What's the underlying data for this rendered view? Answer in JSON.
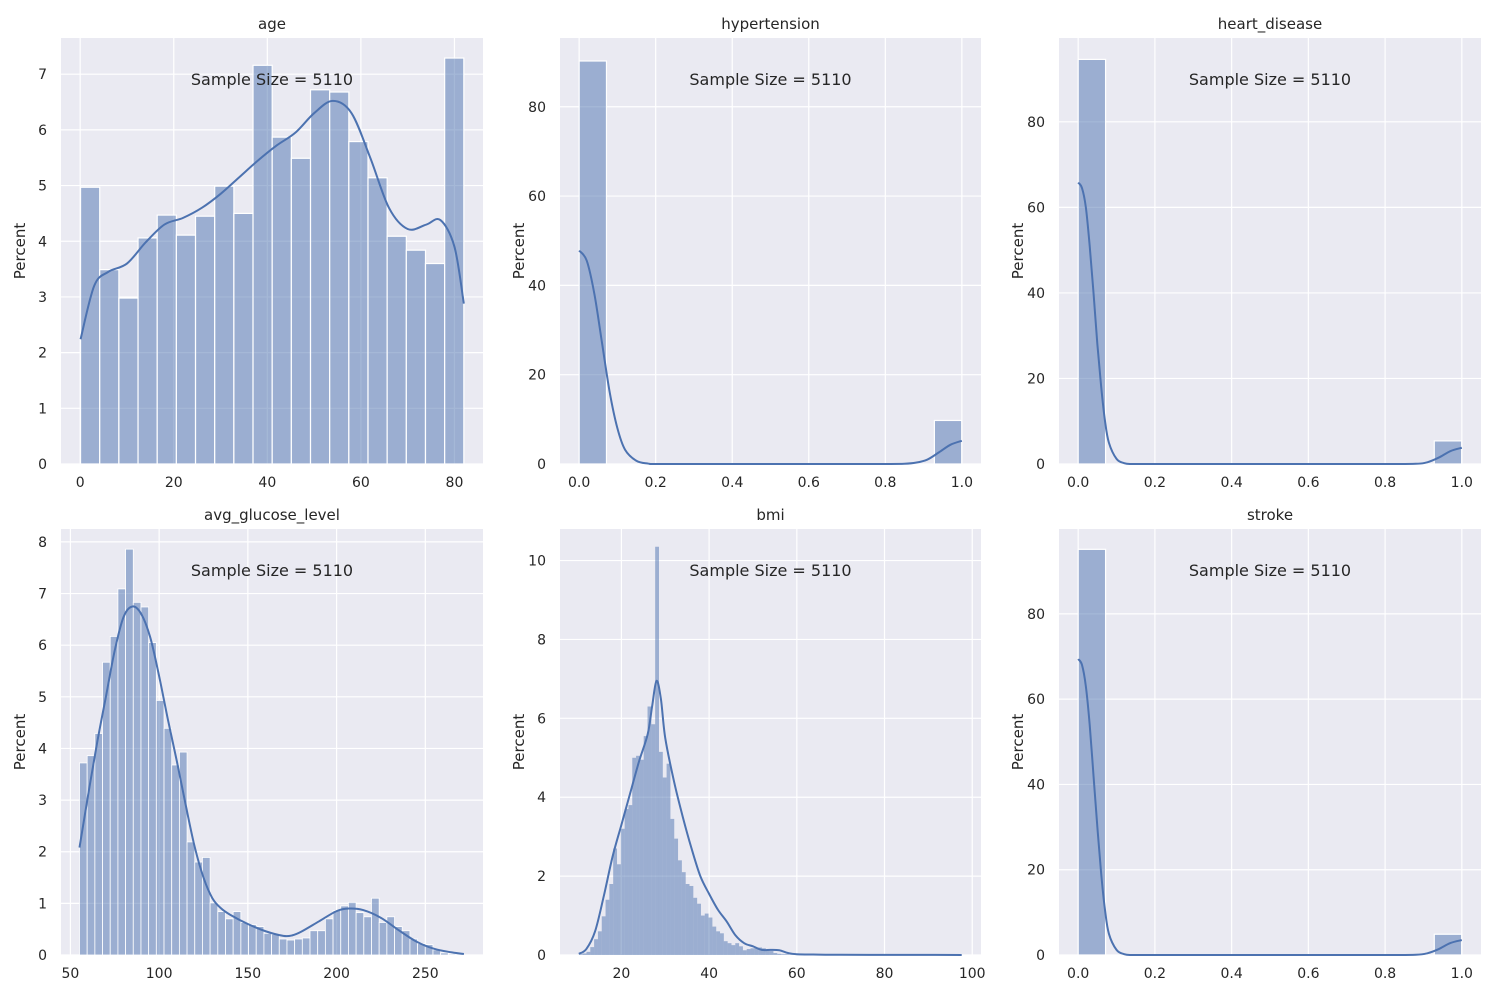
{
  "figure": {
    "annotation_prefix": "Sample Size = ",
    "sample_size": 5110,
    "colors": {
      "bar": "#4c72b0",
      "bar_alpha": 0.5,
      "kde": "#4c72b0",
      "axes_bg": "#eaeaf2",
      "grid": "#ffffff",
      "text": "#262626"
    }
  },
  "chart_data": [
    {
      "type": "bar",
      "title": "age",
      "xlabel": "",
      "ylabel": "Percent",
      "annotation": "Sample Size = 5110",
      "xlim": [
        -4.1,
        86.1
      ],
      "ylim": [
        0,
        7.65
      ],
      "xticks": [
        0,
        20,
        40,
        60,
        80
      ],
      "xtick_labels": [
        "0",
        "20",
        "40",
        "60",
        "80"
      ],
      "yticks": [
        0,
        1,
        2,
        3,
        4,
        5,
        6,
        7
      ],
      "ytick_labels": [
        "0",
        "1",
        "2",
        "3",
        "4",
        "5",
        "6",
        "7"
      ],
      "bin_start": 0.08,
      "bin_width": 4.096,
      "values": [
        4.97,
        3.49,
        2.98,
        4.06,
        4.47,
        4.11,
        4.45,
        4.99,
        4.5,
        7.16,
        5.87,
        5.49,
        6.72,
        6.68,
        5.79,
        5.14,
        4.09,
        3.84,
        3.6,
        7.29
      ],
      "kde": {
        "x": [
          0.08,
          3,
          6,
          10,
          14,
          18,
          22,
          26,
          30,
          34,
          38,
          42,
          46,
          50,
          54,
          58,
          62,
          66,
          70,
          74,
          77,
          80,
          82
        ],
        "y": [
          2.24,
          3.2,
          3.45,
          3.6,
          3.98,
          4.3,
          4.42,
          4.6,
          4.85,
          5.15,
          5.45,
          5.72,
          5.95,
          6.3,
          6.52,
          6.3,
          5.5,
          4.6,
          4.22,
          4.3,
          4.38,
          3.9,
          2.88
        ]
      }
    },
    {
      "type": "bar",
      "title": "hypertension",
      "xlabel": "",
      "ylabel": "Percent",
      "annotation": "Sample Size = 5110",
      "xlim": [
        -0.05,
        1.05
      ],
      "ylim": [
        0,
        95.4
      ],
      "xticks": [
        0.0,
        0.2,
        0.4,
        0.6,
        0.8,
        1.0
      ],
      "xtick_labels": [
        "0.0",
        "0.2",
        "0.4",
        "0.6",
        "0.8",
        "1.0"
      ],
      "yticks": [
        0,
        20,
        40,
        60,
        80
      ],
      "ytick_labels": [
        "0",
        "20",
        "40",
        "60",
        "80"
      ],
      "bin_start": 0.0,
      "bin_width": 0.0714,
      "values": [
        90.25,
        0,
        0,
        0,
        0,
        0,
        0,
        0,
        0,
        0,
        0,
        0,
        0,
        9.75
      ],
      "kde": {
        "x": [
          0,
          0.02,
          0.04,
          0.06,
          0.08,
          0.1,
          0.12,
          0.15,
          0.18,
          0.2,
          0.3,
          0.5,
          0.7,
          0.8,
          0.85,
          0.88,
          0.91,
          0.94,
          0.97,
          1.0
        ],
        "y": [
          47.8,
          45.5,
          38,
          27,
          16,
          8,
          3.2,
          0.7,
          0.1,
          0,
          0,
          0,
          0,
          0,
          0.05,
          0.3,
          1.0,
          2.6,
          4.3,
          5.2
        ]
      }
    },
    {
      "type": "bar",
      "title": "heart_disease",
      "xlabel": "",
      "ylabel": "Percent",
      "annotation": "Sample Size = 5110",
      "xlim": [
        -0.05,
        1.05
      ],
      "ylim": [
        0,
        99.6
      ],
      "xticks": [
        0.0,
        0.2,
        0.4,
        0.6,
        0.8,
        1.0
      ],
      "xtick_labels": [
        "0.0",
        "0.2",
        "0.4",
        "0.6",
        "0.8",
        "1.0"
      ],
      "yticks": [
        0,
        20,
        40,
        60,
        80
      ],
      "ytick_labels": [
        "0",
        "20",
        "40",
        "60",
        "80"
      ],
      "bin_start": 0.0,
      "bin_width": 0.0714,
      "values": [
        94.6,
        0,
        0,
        0,
        0,
        0,
        0,
        0,
        0,
        0,
        0,
        0,
        0,
        5.4
      ],
      "kde": {
        "x": [
          0,
          0.01,
          0.02,
          0.03,
          0.04,
          0.05,
          0.06,
          0.07,
          0.08,
          0.1,
          0.12,
          0.14,
          0.2,
          0.5,
          0.8,
          0.88,
          0.91,
          0.94,
          0.97,
          1.0
        ],
        "y": [
          65.8,
          64.5,
          60,
          51,
          40,
          28,
          18,
          10,
          5,
          1.2,
          0.2,
          0,
          0,
          0,
          0,
          0.05,
          0.4,
          1.5,
          3.0,
          3.8
        ]
      }
    },
    {
      "type": "bar",
      "title": "avg_glucose_level",
      "xlabel": "",
      "ylabel": "Percent",
      "annotation": "Sample Size = 5110",
      "xlim": [
        44.7,
        282.5
      ],
      "ylim": [
        0,
        8.25
      ],
      "xticks": [
        50,
        100,
        150,
        200,
        250
      ],
      "xtick_labels": [
        "50",
        "100",
        "150",
        "200",
        "250"
      ],
      "yticks": [
        0,
        1,
        2,
        3,
        4,
        5,
        6,
        7,
        8
      ],
      "ytick_labels": [
        "0",
        "1",
        "2",
        "3",
        "4",
        "5",
        "6",
        "7",
        "8"
      ],
      "bin_start": 55.12,
      "bin_width": 4.33,
      "values": [
        3.72,
        3.86,
        4.29,
        5.67,
        6.17,
        7.09,
        7.86,
        6.83,
        6.74,
        6.05,
        4.93,
        4.39,
        3.68,
        3.93,
        2.19,
        1.8,
        1.89,
        1.01,
        0.84,
        0.7,
        0.84,
        0.63,
        0.59,
        0.55,
        0.42,
        0.4,
        0.31,
        0.29,
        0.31,
        0.33,
        0.47,
        0.47,
        0.7,
        0.86,
        0.95,
        1.02,
        0.82,
        0.74,
        1.1,
        0.63,
        0.74,
        0.55,
        0.47,
        0.31,
        0.22,
        0.2,
        0.1,
        0.04,
        0.02,
        0.02
      ],
      "kde": {
        "x": [
          55.12,
          60,
          65,
          70,
          75,
          80,
          85,
          90,
          95,
          100,
          105,
          110,
          115,
          120,
          125,
          130,
          135,
          140,
          150,
          160,
          170,
          175,
          180,
          190,
          200,
          207,
          215,
          225,
          235,
          245,
          255,
          265,
          271.74
        ],
        "y": [
          2.08,
          3.1,
          4.1,
          5.0,
          5.9,
          6.55,
          6.75,
          6.6,
          6.15,
          5.4,
          4.55,
          3.75,
          2.9,
          2.1,
          1.5,
          1.1,
          0.9,
          0.78,
          0.6,
          0.46,
          0.37,
          0.38,
          0.45,
          0.65,
          0.85,
          0.9,
          0.87,
          0.72,
          0.48,
          0.26,
          0.12,
          0.05,
          0.02
        ]
      }
    },
    {
      "type": "bar",
      "title": "bmi",
      "xlabel": "",
      "ylabel": "Percent",
      "annotation": "Sample Size = 5110",
      "xlim": [
        6.0,
        102.0
      ],
      "ylim": [
        0,
        10.8
      ],
      "xticks": [
        20,
        40,
        60,
        80,
        100
      ],
      "xtick_labels": [
        "20",
        "40",
        "60",
        "80",
        "100"
      ],
      "yticks": [
        0,
        2,
        4,
        6,
        8,
        10
      ],
      "ytick_labels": [
        "0",
        "2",
        "4",
        "6",
        "8",
        "10"
      ],
      "bin_start": 10.3,
      "bin_width": 0.87,
      "values": [
        0.02,
        0.04,
        0.08,
        0.2,
        0.4,
        0.6,
        0.98,
        1.4,
        1.8,
        2.7,
        2.3,
        3.2,
        3.7,
        3.8,
        5.0,
        5.05,
        4.95,
        5.55,
        6.3,
        5.85,
        10.35,
        5.15,
        4.5,
        4.85,
        3.45,
        2.95,
        2.4,
        2.1,
        1.8,
        1.75,
        1.45,
        1.3,
        1.0,
        1.05,
        0.95,
        0.72,
        0.6,
        0.55,
        0.35,
        0.3,
        0.25,
        0.3,
        0.22,
        0.12,
        0.15,
        0.17,
        0.18,
        0.19,
        0.17,
        0.12,
        0.1,
        0.05,
        0.03,
        0.02,
        0.02,
        0.01,
        0.01,
        0.01,
        0.01,
        0.01,
        0.01,
        0.01,
        0.01,
        0.01,
        0.01,
        0.01,
        0.01,
        0.01,
        0.01,
        0.01,
        0.01,
        0.01,
        0.01,
        0.01,
        0.01,
        0.01,
        0.01,
        0.01,
        0.01,
        0.01,
        0.01,
        0.01,
        0.01,
        0.01,
        0.01,
        0.01,
        0.01,
        0.01,
        0.01,
        0.01,
        0.01,
        0.01,
        0.01,
        0.01,
        0.01,
        0.01,
        0.01,
        0.01,
        0.01,
        0.01
      ],
      "kde": {
        "x": [
          10.3,
          12,
          14,
          16,
          18,
          20,
          22,
          24,
          26,
          27,
          28,
          29,
          30,
          32,
          34,
          36,
          38,
          40,
          42,
          44,
          46,
          48,
          50,
          52,
          54,
          56,
          58,
          60,
          65,
          70,
          80,
          90,
          97.6
        ],
        "y": [
          0.03,
          0.15,
          0.6,
          1.5,
          2.5,
          3.3,
          4.1,
          4.9,
          5.6,
          6.3,
          6.95,
          6.5,
          5.5,
          4.4,
          3.5,
          2.7,
          2.0,
          1.55,
          1.15,
          0.85,
          0.5,
          0.3,
          0.22,
          0.13,
          0.13,
          0.12,
          0.05,
          0.02,
          0.01,
          0.005,
          0.003,
          0.002,
          0.001
        ]
      }
    },
    {
      "type": "bar",
      "title": "stroke",
      "xlabel": "",
      "ylabel": "Percent",
      "annotation": "Sample Size = 5110",
      "xlim": [
        -0.05,
        1.05
      ],
      "ylim": [
        0,
        99.9
      ],
      "xticks": [
        0.0,
        0.2,
        0.4,
        0.6,
        0.8,
        1.0
      ],
      "xtick_labels": [
        "0.0",
        "0.2",
        "0.4",
        "0.6",
        "0.8",
        "1.0"
      ],
      "yticks": [
        0,
        20,
        40,
        60,
        80
      ],
      "ytick_labels": [
        "0",
        "20",
        "40",
        "60",
        "80"
      ],
      "bin_start": 0.0,
      "bin_width": 0.0714,
      "values": [
        95.13,
        0,
        0,
        0,
        0,
        0,
        0,
        0,
        0,
        0,
        0,
        0,
        0,
        4.87
      ],
      "kde": {
        "x": [
          0,
          0.01,
          0.02,
          0.03,
          0.04,
          0.05,
          0.06,
          0.07,
          0.08,
          0.1,
          0.12,
          0.14,
          0.2,
          0.5,
          0.8,
          0.88,
          0.91,
          0.94,
          0.97,
          1.0
        ],
        "y": [
          69.4,
          68,
          63,
          54,
          42,
          30,
          19,
          10.5,
          5,
          1.2,
          0.2,
          0,
          0,
          0,
          0,
          0.05,
          0.4,
          1.4,
          2.8,
          3.5
        ]
      }
    }
  ]
}
